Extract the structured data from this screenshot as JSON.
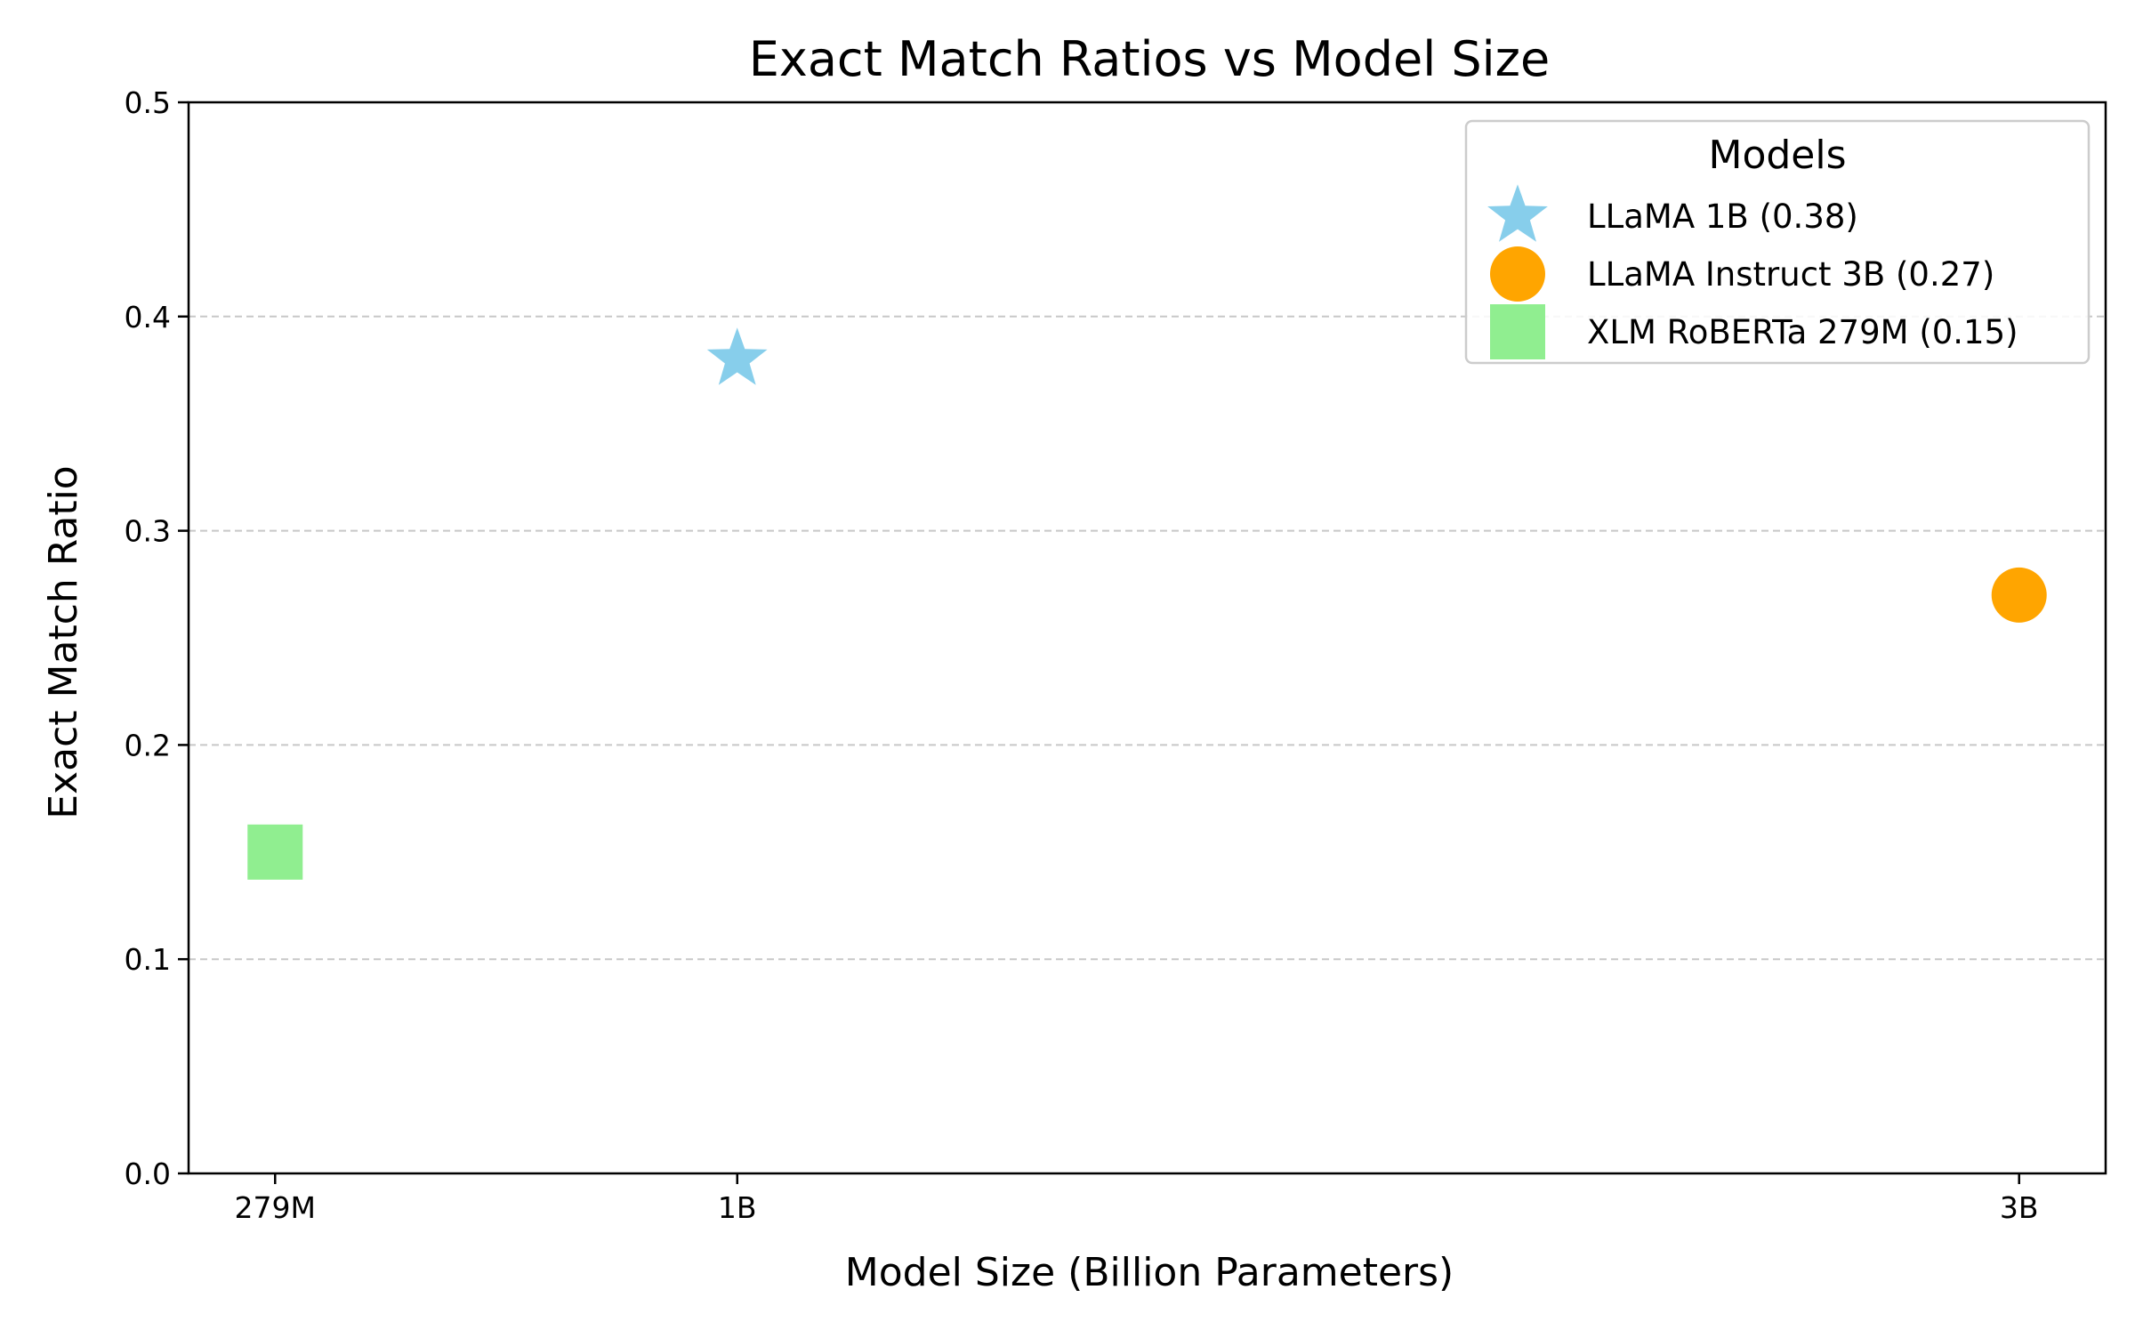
{
  "chart_data": {
    "type": "scatter",
    "title": "Exact Match Ratios vs Model Size",
    "xlabel": "Model Size (Billion Parameters)",
    "ylabel": "Exact Match Ratio",
    "x_ticks": [
      {
        "value": 0.279,
        "label": "279M"
      },
      {
        "value": 1,
        "label": "1B"
      },
      {
        "value": 3,
        "label": "3B"
      }
    ],
    "xlim": [
      0.144,
      3.135
    ],
    "y_ticks": [
      {
        "value": 0.0,
        "label": "0.0"
      },
      {
        "value": 0.1,
        "label": "0.1"
      },
      {
        "value": 0.2,
        "label": "0.2"
      },
      {
        "value": 0.3,
        "label": "0.3"
      },
      {
        "value": 0.4,
        "label": "0.4"
      },
      {
        "value": 0.5,
        "label": "0.5"
      }
    ],
    "ylim": [
      0,
      0.5
    ],
    "grid": {
      "axis": "y",
      "style": "dashed",
      "color": "#c8c8c8"
    },
    "legend": {
      "title": "Models",
      "placement": "top-right"
    },
    "series": [
      {
        "name": "LLaMA 1B (0.38)",
        "marker": "star",
        "color": "#87ceeb",
        "x": 1,
        "y": 0.38
      },
      {
        "name": "LLaMA Instruct 3B (0.27)",
        "marker": "circle",
        "color": "#ffa500",
        "x": 3,
        "y": 0.27
      },
      {
        "name": "XLM RoBERTa 279M (0.15)",
        "marker": "square",
        "color": "#90ee90",
        "x": 0.279,
        "y": 0.15
      }
    ]
  }
}
